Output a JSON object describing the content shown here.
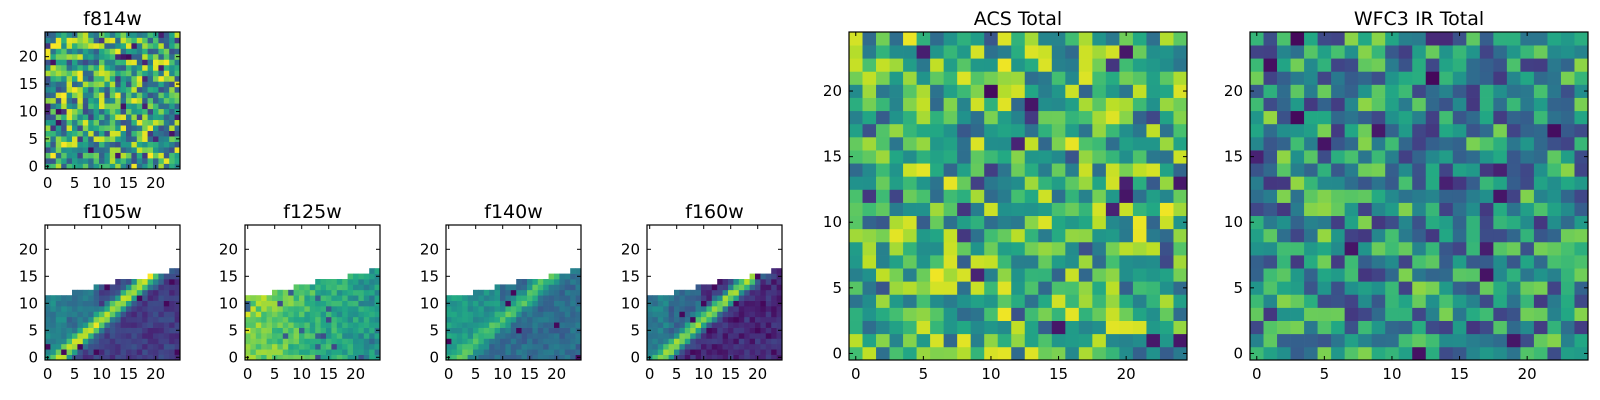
{
  "chart_data": [
    {
      "type": "heatmap",
      "title": "f814w",
      "xlim": [
        0,
        25
      ],
      "ylim": [
        0,
        25
      ],
      "xticks": [
        0,
        5,
        10,
        15,
        20
      ],
      "yticks": [
        0,
        5,
        10,
        15,
        20
      ],
      "colormap": "viridis",
      "pattern": "noise",
      "seed": 11,
      "bias": 0.62,
      "spread": 0.38
    },
    {
      "type": "heatmap",
      "title": "f105w",
      "xlim": [
        0,
        25
      ],
      "ylim": [
        0,
        25
      ],
      "xticks": [
        0,
        5,
        10,
        15,
        20
      ],
      "yticks": [
        0,
        5,
        10,
        15,
        20
      ],
      "colormap": "viridis",
      "pattern": "diagonal",
      "seed": 21,
      "diagonal_peak": 0.92,
      "background": 0.18,
      "left_level": 0.32,
      "top_edge": [
        12,
        12,
        12,
        12,
        12,
        13,
        13,
        13,
        13,
        14,
        14,
        14,
        14,
        15,
        15,
        15,
        15,
        15,
        15,
        16,
        16,
        16,
        16,
        17,
        17
      ]
    },
    {
      "type": "heatmap",
      "title": "f125w",
      "xlim": [
        0,
        25
      ],
      "ylim": [
        0,
        25
      ],
      "xticks": [
        0,
        5,
        10,
        15,
        20
      ],
      "yticks": [
        0,
        5,
        10,
        15,
        20
      ],
      "colormap": "viridis",
      "pattern": "gradient",
      "seed": 31,
      "left_level": 0.82,
      "right_level": 0.5,
      "top_edge": [
        12,
        12,
        12,
        12,
        12,
        13,
        13,
        13,
        13,
        14,
        14,
        14,
        14,
        15,
        15,
        15,
        15,
        15,
        15,
        16,
        16,
        16,
        16,
        17,
        17
      ]
    },
    {
      "type": "heatmap",
      "title": "f140w",
      "xlim": [
        0,
        25
      ],
      "ylim": [
        0,
        25
      ],
      "xticks": [
        0,
        5,
        10,
        15,
        20
      ],
      "yticks": [
        0,
        5,
        10,
        15,
        20
      ],
      "colormap": "viridis",
      "pattern": "diagonal",
      "seed": 41,
      "diagonal_peak": 0.72,
      "background": 0.35,
      "left_level": 0.42,
      "top_edge": [
        12,
        12,
        12,
        12,
        12,
        13,
        13,
        13,
        13,
        14,
        14,
        14,
        14,
        15,
        15,
        15,
        15,
        15,
        15,
        16,
        16,
        16,
        16,
        17,
        17
      ]
    },
    {
      "type": "heatmap",
      "title": "f160w",
      "xlim": [
        0,
        25
      ],
      "ylim": [
        0,
        25
      ],
      "xticks": [
        0,
        5,
        10,
        15,
        20
      ],
      "yticks": [
        0,
        5,
        10,
        15,
        20
      ],
      "colormap": "viridis",
      "pattern": "diagonal",
      "seed": 51,
      "diagonal_peak": 0.85,
      "background": 0.12,
      "left_level": 0.3,
      "top_edge": [
        12,
        12,
        12,
        12,
        12,
        13,
        13,
        13,
        13,
        14,
        14,
        14,
        14,
        15,
        15,
        15,
        15,
        15,
        15,
        16,
        16,
        16,
        16,
        17,
        17
      ]
    },
    {
      "type": "heatmap",
      "title": "ACS Total",
      "xlim": [
        0,
        25
      ],
      "ylim": [
        0,
        25
      ],
      "xticks": [
        0,
        5,
        10,
        15,
        20
      ],
      "yticks": [
        0,
        5,
        10,
        15,
        20
      ],
      "colormap": "viridis",
      "pattern": "noise",
      "seed": 61,
      "bias": 0.66,
      "spread": 0.32
    },
    {
      "type": "heatmap",
      "title": "WFC3 IR Total",
      "xlim": [
        0,
        25
      ],
      "ylim": [
        0,
        25
      ],
      "xticks": [
        0,
        5,
        10,
        15,
        20
      ],
      "yticks": [
        0,
        5,
        10,
        15,
        20
      ],
      "colormap": "viridis",
      "pattern": "noise",
      "seed": 71,
      "bias": 0.5,
      "spread": 0.34
    }
  ]
}
